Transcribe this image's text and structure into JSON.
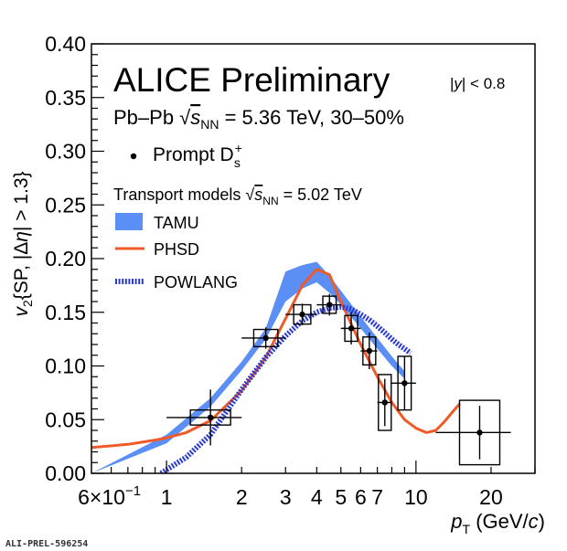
{
  "chart_data": {
    "type": "scatter",
    "title": "ALICE Preliminary",
    "subtitle": "Pb–Pb √s_NN = 5.36 TeV, 30–50%",
    "rapidity_label": "|y| < 0.8",
    "ylabel": "v2{SP, |Δη| > 1.3}",
    "xlabel": "pT (GeV/c)",
    "x_scale": "log",
    "xlim": [
      0.5,
      30
    ],
    "ylim": [
      0.0,
      0.4
    ],
    "yticks": [
      "0.00",
      "0.05",
      "0.10",
      "0.15",
      "0.20",
      "0.25",
      "0.30",
      "0.35",
      "0.40"
    ],
    "xticks": [
      {
        "value": 0.6,
        "label": "6×10⁻¹"
      },
      {
        "value": 1,
        "label": "1"
      },
      {
        "value": 2,
        "label": "2"
      },
      {
        "value": 3,
        "label": "3"
      },
      {
        "value": 4,
        "label": "4"
      },
      {
        "value": 5,
        "label": "5"
      },
      {
        "value": 6,
        "label": "6"
      },
      {
        "value": 7,
        "label": "7"
      },
      {
        "value": 10,
        "label": "10"
      },
      {
        "value": 20,
        "label": "20"
      }
    ],
    "legend_data_label": "Prompt D_s^+",
    "models_header": "Transport models √s_NN = 5.02 TeV",
    "grid": false,
    "legend_position": "top-left",
    "series": [
      {
        "name": "Prompt D_s^+",
        "kind": "points",
        "color": "#000000",
        "points": [
          {
            "x": 1.5,
            "xlo": 1.0,
            "xhi": 2.0,
            "y": 0.052,
            "stat": 0.026,
            "syst": 0.007
          },
          {
            "x": 2.5,
            "xlo": 2.0,
            "xhi": 3.0,
            "y": 0.126,
            "stat": 0.01,
            "syst": 0.008
          },
          {
            "x": 3.5,
            "xlo": 3.0,
            "xhi": 4.0,
            "y": 0.148,
            "stat": 0.01,
            "syst": 0.009
          },
          {
            "x": 4.5,
            "xlo": 4.0,
            "xhi": 5.0,
            "y": 0.157,
            "stat": 0.01,
            "syst": 0.008
          },
          {
            "x": 5.5,
            "xlo": 5.0,
            "xhi": 6.0,
            "y": 0.135,
            "stat": 0.015,
            "syst": 0.012
          },
          {
            "x": 6.5,
            "xlo": 6.0,
            "xhi": 7.0,
            "y": 0.114,
            "stat": 0.017,
            "syst": 0.013
          },
          {
            "x": 7.5,
            "xlo": 7.0,
            "xhi": 8.0,
            "y": 0.066,
            "stat": 0.022,
            "syst": 0.026
          },
          {
            "x": 9.0,
            "xlo": 8.0,
            "xhi": 10.0,
            "y": 0.084,
            "stat": 0.025,
            "syst": 0.025
          },
          {
            "x": 18.0,
            "xlo": 12.0,
            "xhi": 24.0,
            "y": 0.038,
            "stat": 0.025,
            "syst": 0.03
          }
        ]
      },
      {
        "name": "TAMU",
        "kind": "band",
        "color": "#5b8ff5",
        "x": [
          0.5,
          1.0,
          1.5,
          2.0,
          2.5,
          3.0,
          3.5,
          4.0,
          4.5,
          5.0,
          6.0,
          7.0,
          8.0,
          9.0
        ],
        "low": [
          0.0,
          0.028,
          0.062,
          0.096,
          0.125,
          0.16,
          0.172,
          0.178,
          0.168,
          0.157,
          0.135,
          0.116,
          0.1,
          0.088
        ],
        "high": [
          0.0,
          0.036,
          0.07,
          0.104,
          0.135,
          0.188,
          0.194,
          0.197,
          0.184,
          0.17,
          0.146,
          0.126,
          0.109,
          0.095
        ]
      },
      {
        "name": "PHSD",
        "kind": "line",
        "color": "#f05a28",
        "x": [
          0.5,
          0.7,
          0.9,
          1.0,
          1.2,
          1.5,
          2.0,
          2.5,
          3.0,
          3.5,
          4.0,
          4.5,
          5.0,
          6.0,
          7.0,
          8.0,
          9.0,
          10.0,
          11.0,
          12.0,
          13.0,
          14.0,
          15.0
        ],
        "y": [
          0.024,
          0.027,
          0.031,
          0.033,
          0.038,
          0.049,
          0.077,
          0.108,
          0.144,
          0.175,
          0.19,
          0.185,
          0.16,
          0.12,
          0.09,
          0.066,
          0.05,
          0.042,
          0.038,
          0.04,
          0.048,
          0.057,
          0.065
        ]
      },
      {
        "name": "POWLANG",
        "kind": "line",
        "style": "dotted",
        "color": "#2b3bcf",
        "x": [
          0.95,
          1.2,
          1.5,
          2.0,
          2.5,
          3.0,
          3.5,
          4.0,
          4.5,
          5.0,
          5.5,
          6.0,
          6.5,
          7.0,
          7.5,
          8.0,
          8.5,
          9.0,
          9.5
        ],
        "y": [
          0.0,
          0.015,
          0.036,
          0.078,
          0.108,
          0.128,
          0.142,
          0.15,
          0.154,
          0.155,
          0.153,
          0.148,
          0.143,
          0.137,
          0.131,
          0.125,
          0.12,
          0.116,
          0.112
        ]
      }
    ]
  },
  "footer": {
    "id_label": "ALI-PREL-596254"
  }
}
